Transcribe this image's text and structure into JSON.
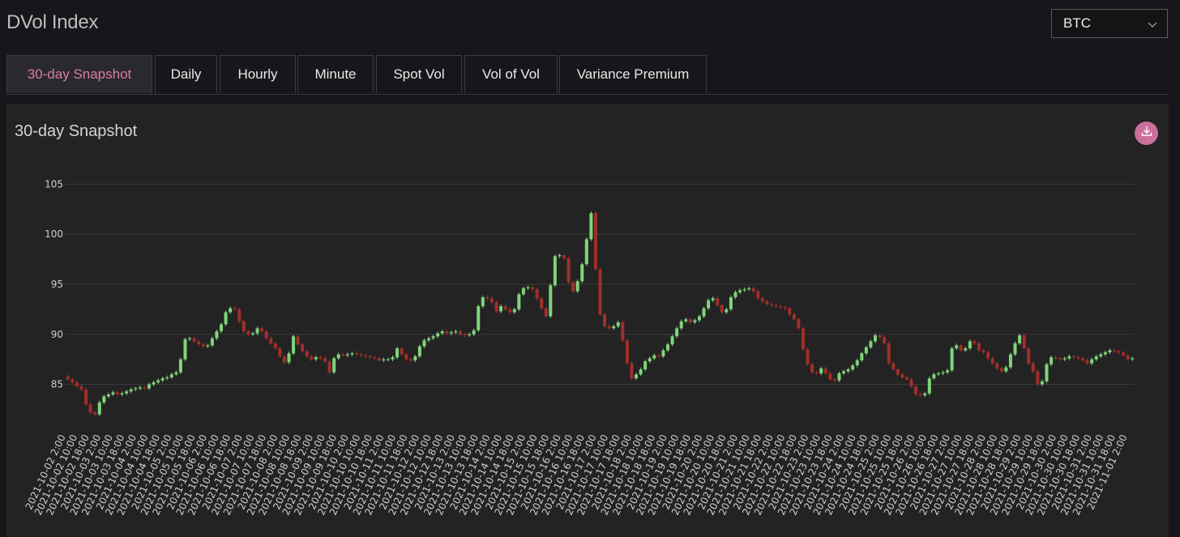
{
  "header": {
    "title": "DVol Index",
    "asset_select": {
      "value": "BTC",
      "icon": "chevron-down-icon"
    }
  },
  "tabs": [
    {
      "label": "30-day Snapshot",
      "active": true
    },
    {
      "label": "Daily",
      "active": false
    },
    {
      "label": "Hourly",
      "active": false
    },
    {
      "label": "Minute",
      "active": false
    },
    {
      "label": "Spot Vol",
      "active": false
    },
    {
      "label": "Vol of Vol",
      "active": false
    },
    {
      "label": "Variance Premium",
      "active": false
    }
  ],
  "panel": {
    "title": "30-day Snapshot",
    "download_icon": "download-icon"
  },
  "colors": {
    "accent": "#d77fa6",
    "up": "#7fd47a",
    "down": "#a12f2a",
    "grid": "#3b3b3e"
  },
  "chart_data": {
    "type": "candlestick",
    "title": "",
    "xlabel": "",
    "ylabel": "",
    "ylim": [
      81,
      106
    ],
    "y_ticks": [
      85,
      90,
      95,
      100,
      105
    ],
    "grid": true,
    "x_ticks": [
      "2021-10-02 2:00",
      "2021-10-02 10:00",
      "2021-10-02 18:00",
      "2021-10-03 2:00",
      "2021-10-03 10:00",
      "2021-10-03 18:00",
      "2021-10-04 2:00",
      "2021-10-04 10:00",
      "2021-10-04 18:00",
      "2021-10-05 2:00",
      "2021-10-05 10:00",
      "2021-10-05 18:00",
      "2021-10-06 2:00",
      "2021-10-06 10:00",
      "2021-10-06 18:00",
      "2021-10-07 2:00",
      "2021-10-07 10:00",
      "2021-10-07 18:00",
      "2021-10-08 2:00",
      "2021-10-08 10:00",
      "2021-10-08 18:00",
      "2021-10-09 2:00",
      "2021-10-09 10:00",
      "2021-10-09 18:00",
      "2021-10-10 2:00",
      "2021-10-10 10:00",
      "2021-10-10 18:00",
      "2021-10-11 2:00",
      "2021-10-11 10:00",
      "2021-10-11 18:00",
      "2021-10-12 2:00",
      "2021-10-12 10:00",
      "2021-10-12 18:00",
      "2021-10-13 2:00",
      "2021-10-13 10:00",
      "2021-10-13 18:00",
      "2021-10-14 2:00",
      "2021-10-14 10:00",
      "2021-10-14 18:00",
      "2021-10-15 2:00",
      "2021-10-15 10:00",
      "2021-10-15 18:00",
      "2021-10-16 2:00",
      "2021-10-16 10:00",
      "2021-10-16 18:00",
      "2021-10-17 2:00",
      "2021-10-17 10:00",
      "2021-10-17 18:00",
      "2021-10-18 2:00",
      "2021-10-18 10:00",
      "2021-10-18 18:00",
      "2021-10-19 2:00",
      "2021-10-19 10:00",
      "2021-10-19 18:00",
      "2021-10-20 2:00",
      "2021-10-20 10:00",
      "2021-10-20 18:00",
      "2021-10-21 2:00",
      "2021-10-21 10:00",
      "2021-10-21 18:00",
      "2021-10-22 2:00",
      "2021-10-22 10:00",
      "2021-10-22 18:00",
      "2021-10-23 2:00",
      "2021-10-23 10:00",
      "2021-10-23 18:00",
      "2021-10-24 2:00",
      "2021-10-24 10:00",
      "2021-10-24 18:00",
      "2021-10-25 2:00",
      "2021-10-25 10:00",
      "2021-10-25 18:00",
      "2021-10-26 2:00",
      "2021-10-26 10:00",
      "2021-10-26 18:00",
      "2021-10-27 2:00",
      "2021-10-27 10:00",
      "2021-10-27 18:00",
      "2021-10-28 2:00",
      "2021-10-28 10:00",
      "2021-10-28 18:00",
      "2021-10-29 2:00",
      "2021-10-29 10:00",
      "2021-10-29 18:00",
      "2021-10-30 2:00",
      "2021-10-30 10:00",
      "2021-10-30 18:00",
      "2021-10-31 2:00",
      "2021-10-31 10:00",
      "2021-10-31 18:00",
      "2021-11-01 2:00"
    ],
    "series": [
      {
        "values": [
          85.5,
          85.2,
          84.8,
          84.5,
          83.0,
          82.2,
          82.0,
          83.2,
          83.8,
          84.0,
          84.2,
          84.0,
          84.1,
          84.3,
          84.5,
          84.6,
          84.7,
          84.6,
          85.0,
          85.2,
          85.4,
          85.6,
          85.7,
          86.0,
          86.2,
          87.5,
          89.5,
          89.6,
          89.3,
          89.0,
          88.8,
          88.9,
          89.6,
          90.3,
          91.0,
          92.2,
          92.6,
          92.5,
          91.3,
          90.3,
          90.0,
          90.1,
          90.6,
          90.3,
          89.6,
          89.1,
          88.6,
          87.8,
          87.2,
          88.1,
          89.8,
          89.0,
          88.3,
          87.8,
          87.5,
          87.7,
          87.6,
          87.3,
          86.2,
          87.6,
          88.0,
          87.9,
          88.0,
          88.1,
          88.0,
          87.9,
          87.8,
          87.7,
          87.6,
          87.4,
          87.5,
          87.5,
          87.7,
          88.6,
          88.0,
          87.5,
          87.4,
          87.8,
          88.8,
          89.4,
          89.6,
          89.8,
          90.1,
          90.3,
          90.1,
          90.2,
          90.3,
          90.0,
          89.9,
          90.0,
          90.4,
          92.8,
          93.7,
          93.6,
          93.2,
          92.3,
          92.8,
          92.5,
          92.2,
          92.5,
          94.0,
          94.6,
          94.7,
          94.5,
          93.6,
          92.6,
          91.8,
          94.9,
          97.8,
          97.9,
          97.6,
          95.2,
          94.3,
          95.3,
          97.0,
          99.5,
          102.1,
          96.5,
          92.0,
          90.8,
          90.6,
          90.8,
          91.2,
          89.4,
          87.1,
          85.6,
          86.0,
          86.5,
          87.3,
          87.6,
          87.9,
          87.8,
          88.4,
          89.0,
          89.8,
          90.6,
          91.3,
          91.5,
          91.2,
          91.4,
          91.8,
          92.6,
          93.4,
          93.6,
          92.9,
          92.2,
          92.5,
          93.7,
          94.2,
          94.4,
          94.5,
          94.6,
          94.3,
          93.6,
          93.3,
          93.0,
          92.9,
          92.8,
          92.7,
          92.6,
          92.0,
          91.5,
          90.6,
          88.5,
          87.0,
          86.2,
          86.1,
          86.6,
          86.1,
          85.5,
          85.4,
          86.1,
          86.3,
          86.5,
          86.9,
          87.4,
          88.1,
          88.7,
          89.3,
          89.9,
          89.7,
          89.1,
          87.1,
          86.5,
          86.0,
          85.7,
          85.5,
          84.8,
          84.0,
          83.9,
          84.1,
          85.6,
          86.0,
          86.1,
          86.2,
          86.4,
          88.6,
          88.9,
          88.4,
          88.6,
          89.3,
          89.1,
          88.4,
          88.2,
          87.6,
          87.1,
          86.6,
          86.3,
          86.7,
          88.0,
          89.1,
          89.9,
          88.6,
          87.1,
          86.3,
          85.0,
          85.3,
          87.0,
          87.7,
          87.6,
          87.5,
          87.6,
          87.8,
          87.7,
          87.6,
          87.4,
          87.1,
          87.5,
          87.8,
          88.0,
          88.2,
          88.4,
          88.3,
          88.2,
          87.9,
          87.5,
          87.6
        ]
      }
    ]
  }
}
